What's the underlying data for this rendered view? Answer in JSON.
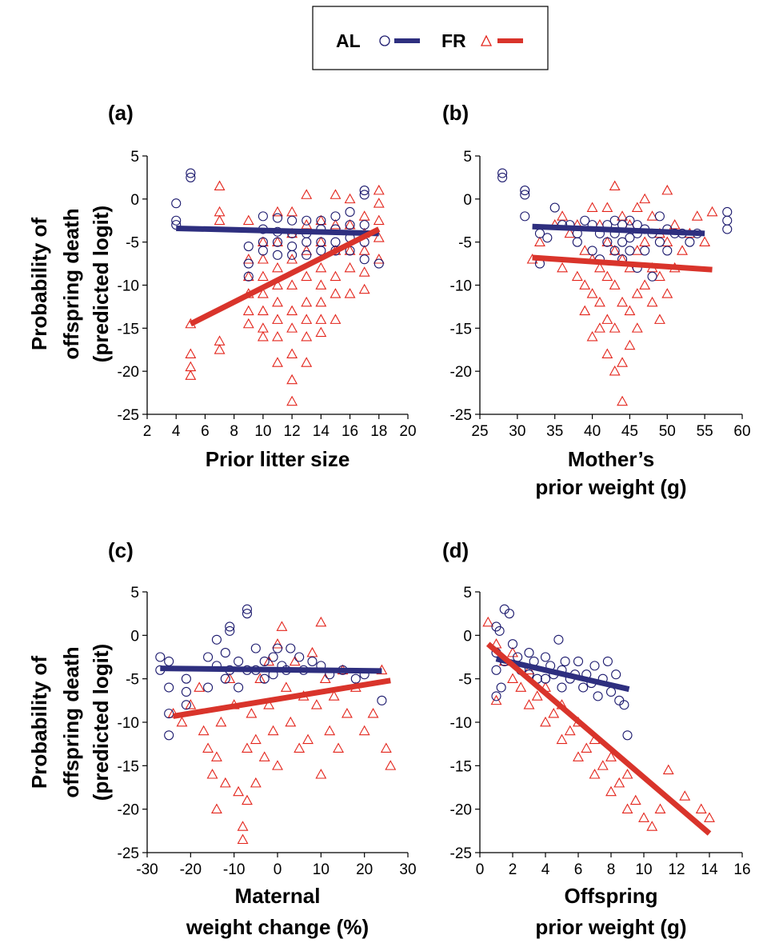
{
  "legend": {
    "entries": [
      {
        "name": "AL",
        "marker": "circle-icon",
        "color": "#1c1a6e"
      },
      {
        "name": "FR",
        "marker": "triangle-icon",
        "color": "#e3241b"
      }
    ]
  },
  "colors": {
    "AL": "#1c1a6e",
    "FR": "#e3241b",
    "AL_line": "#2e2f7f",
    "FR_line": "#d9342b"
  },
  "shared_ylabel": [
    "Probability of",
    "offspring death",
    "(predicted logit)"
  ],
  "chart_data": [
    {
      "id": "a",
      "panel_label": "(a)",
      "type": "scatter",
      "xlabel": [
        "Prior litter size"
      ],
      "ylabel": [
        "Probability of",
        "offspring death",
        "(predicted logit)"
      ],
      "xlim": [
        2,
        20
      ],
      "ylim": [
        -25,
        5
      ],
      "xticks": [
        2,
        4,
        6,
        8,
        10,
        12,
        14,
        16,
        18,
        20
      ],
      "yticks": [
        5,
        0,
        -5,
        -10,
        -15,
        -20,
        -25
      ],
      "series": [
        {
          "name": "AL",
          "marker": "circle",
          "color": "#1c1a6e",
          "x": [
            4,
            4,
            4,
            5,
            5,
            9,
            9,
            9,
            10,
            10,
            10,
            10,
            11,
            11,
            11,
            11,
            12,
            12,
            12,
            12,
            13,
            13,
            13,
            13,
            14,
            14,
            14,
            14,
            15,
            15,
            15,
            15,
            16,
            16,
            16,
            16,
            17,
            17,
            17,
            17,
            17,
            18
          ],
          "y": [
            -0.5,
            -2.5,
            -3,
            3,
            2.5,
            -5.5,
            -7.5,
            -9,
            -2,
            -3.5,
            -5,
            -6,
            -2.2,
            -3.8,
            -5,
            -6.5,
            -2.5,
            -4,
            -5.5,
            -6.5,
            -2.5,
            -4,
            -5,
            -6.5,
            -2.5,
            -3.5,
            -5,
            -6,
            -2,
            -3.5,
            -5,
            -6,
            -1.5,
            -3,
            -4.5,
            -6,
            1,
            0.5,
            -3,
            -5,
            -7,
            -7.5
          ],
          "fit": {
            "x": [
              4,
              18
            ],
            "y": [
              -3.4,
              -4.0
            ]
          }
        },
        {
          "name": "FR",
          "marker": "triangle",
          "color": "#e3241b",
          "x": [
            5,
            5,
            5,
            5,
            7,
            7,
            7,
            7,
            7,
            9,
            9,
            9,
            9,
            9,
            9,
            10,
            10,
            10,
            10,
            10,
            10,
            10,
            11,
            11,
            11,
            11,
            11,
            11,
            11,
            11,
            12,
            12,
            12,
            12,
            12,
            12,
            12,
            12,
            12,
            13,
            13,
            13,
            13,
            13,
            13,
            13,
            13,
            14,
            14,
            14,
            14,
            14,
            14,
            14,
            15,
            15,
            15,
            15,
            15,
            15,
            16,
            16,
            16,
            16,
            16,
            17,
            17,
            17,
            17,
            17,
            18,
            18,
            18,
            18,
            18
          ],
          "y": [
            -14.5,
            -18,
            -19.5,
            -20.5,
            1.5,
            -1.5,
            -2.5,
            -16.5,
            -17.5,
            -2.5,
            -7,
            -9,
            -11,
            -13,
            -14.5,
            -5,
            -7,
            -9,
            -11,
            -13,
            -15,
            -16,
            -1.5,
            -5,
            -8,
            -10,
            -12,
            -14,
            -16,
            -19,
            -1.5,
            -4,
            -7,
            -10,
            -13,
            -15,
            -18,
            -21,
            -23.5,
            0.5,
            -3,
            -6,
            -9,
            -12,
            -14,
            -16,
            -19,
            -2.5,
            -5,
            -8,
            -10,
            -12,
            -14,
            -15.5,
            0.5,
            -3,
            -6,
            -9,
            -11,
            -14,
            0,
            -3,
            -6,
            -8,
            -11,
            -2,
            -4,
            -6,
            -8.5,
            -10.5,
            1,
            -0.5,
            -2.5,
            -4.5,
            -7
          ],
          "fit": {
            "x": [
              5,
              18
            ],
            "y": [
              -14.5,
              -3.5
            ]
          }
        }
      ]
    },
    {
      "id": "b",
      "panel_label": "(b)",
      "type": "scatter",
      "xlabel": [
        "Mother’s",
        "prior weight (g)"
      ],
      "ylabel": [],
      "xlim": [
        25,
        60
      ],
      "ylim": [
        -25,
        5
      ],
      "xticks": [
        25,
        30,
        35,
        40,
        45,
        50,
        55,
        60
      ],
      "yticks": [
        5,
        0,
        -5,
        -10,
        -15,
        -20,
        -25
      ],
      "series": [
        {
          "name": "AL",
          "marker": "circle",
          "color": "#1c1a6e",
          "x": [
            28,
            28,
            31,
            31,
            31,
            33,
            33,
            34,
            35,
            36,
            37,
            38,
            38,
            39,
            40,
            40,
            41,
            41,
            42,
            42,
            43,
            43,
            43,
            44,
            44,
            44,
            45,
            45,
            45,
            46,
            46,
            46,
            47,
            47,
            48,
            48,
            49,
            49,
            50,
            50,
            51,
            52,
            53,
            54,
            58,
            58,
            58
          ],
          "y": [
            3,
            2.5,
            1,
            0.5,
            -2,
            -4,
            -7.5,
            -4.5,
            -1,
            -3,
            -3,
            -4,
            -5,
            -2.5,
            -3,
            -6,
            -4,
            -7,
            -3,
            -5,
            -2.5,
            -4,
            -6,
            -3,
            -5,
            -7,
            -2.5,
            -4.5,
            -6,
            -3,
            -4,
            -8,
            -3.5,
            -6,
            -4,
            -9,
            -2,
            -5,
            -3.5,
            -6,
            -4,
            -4,
            -5,
            -4,
            -1.5,
            -2.5,
            -3.5
          ],
          "fit": {
            "x": [
              32,
              55
            ],
            "y": [
              -3.2,
              -4.0
            ]
          }
        },
        {
          "name": "FR",
          "marker": "triangle",
          "color": "#e3241b",
          "x": [
            32,
            33,
            35,
            36,
            36,
            37,
            38,
            38,
            39,
            39,
            39,
            40,
            40,
            40,
            40,
            41,
            41,
            41,
            41,
            42,
            42,
            42,
            42,
            42,
            43,
            43,
            43,
            43,
            43,
            44,
            44,
            44,
            44,
            44,
            45,
            45,
            45,
            45,
            46,
            46,
            46,
            46,
            47,
            47,
            47,
            48,
            48,
            48,
            49,
            49,
            49,
            50,
            50,
            50,
            51,
            51,
            52,
            53,
            54,
            55,
            56
          ],
          "y": [
            -7,
            -5,
            -3,
            -2,
            -8,
            -4,
            -3,
            -9,
            -6,
            -10,
            -13,
            -1,
            -7,
            -11,
            -16,
            -3,
            -8,
            -12,
            -15,
            -1,
            -5,
            -9,
            -14,
            -18,
            1.5,
            -6,
            -10,
            -15,
            -20,
            -2,
            -7,
            -12,
            -19,
            -23.5,
            -3,
            -8,
            -13,
            -17,
            -1,
            -6,
            -11,
            -15,
            0,
            -5,
            -10,
            -2,
            -8,
            -12,
            -4,
            -9,
            -14,
            1,
            -5,
            -11,
            -3,
            -8,
            -6,
            -4,
            -2,
            -5,
            -1.5
          ],
          "fit": {
            "x": [
              32,
              56
            ],
            "y": [
              -6.8,
              -8.2
            ]
          }
        }
      ]
    },
    {
      "id": "c",
      "panel_label": "(c)",
      "type": "scatter",
      "xlabel": [
        "Maternal",
        "weight change (%)"
      ],
      "ylabel": [
        "Probability of",
        "offspring death",
        "(predicted logit)"
      ],
      "xlim": [
        -30,
        30
      ],
      "ylim": [
        -25,
        5
      ],
      "xticks": [
        -30,
        -20,
        -10,
        0,
        10,
        20,
        30
      ],
      "yticks": [
        5,
        0,
        -5,
        -10,
        -15,
        -20,
        -25
      ],
      "series": [
        {
          "name": "AL",
          "marker": "circle",
          "color": "#1c1a6e",
          "x": [
            -27,
            -27,
            -25,
            -25,
            -25,
            -25,
            -21,
            -21,
            -21,
            -16,
            -16,
            -14,
            -14,
            -12,
            -12,
            -11,
            -11,
            -11,
            -9,
            -9,
            -7,
            -7,
            -7,
            -5,
            -5,
            -3,
            -3,
            -1,
            -1,
            0,
            1,
            2,
            3,
            5,
            6,
            8,
            10,
            12,
            15,
            18,
            20,
            24
          ],
          "y": [
            -2.5,
            -4,
            -3,
            -6,
            -9,
            -11.5,
            -5,
            -6.5,
            -8,
            -2.5,
            -6,
            -0.5,
            -3.5,
            -2,
            -5,
            1,
            0.5,
            -4,
            -3,
            -6,
            3,
            2.5,
            -4,
            -1.5,
            -4,
            -3,
            -5,
            -2.5,
            -4.5,
            -1.5,
            -3.5,
            -4,
            -1.5,
            -2.5,
            -4,
            -3,
            -3.5,
            -4.5,
            -4,
            -5,
            -4.5,
            -7.5
          ],
          "fit": {
            "x": [
              -27,
              24
            ],
            "y": [
              -3.8,
              -4.1
            ]
          }
        },
        {
          "name": "FR",
          "marker": "triangle",
          "color": "#e3241b",
          "x": [
            -24,
            -22,
            -20,
            -18,
            -17,
            -16,
            -15,
            -14,
            -14,
            -13,
            -12,
            -11,
            -10,
            -9,
            -8,
            -8,
            -7,
            -7,
            -6,
            -5,
            -5,
            -4,
            -3,
            -2,
            -2,
            -1,
            0,
            0,
            1,
            2,
            3,
            4,
            5,
            6,
            7,
            8,
            9,
            10,
            10,
            11,
            12,
            13,
            14,
            15,
            16,
            18,
            20,
            22,
            24,
            25,
            26
          ],
          "y": [
            -9,
            -10,
            -8,
            -6,
            -11,
            -13,
            -16,
            -14,
            -20,
            -10,
            -17,
            -5,
            -8,
            -18,
            -22,
            -23.5,
            -13,
            -19,
            -9,
            -12,
            -17,
            -5,
            -14,
            -3,
            -8,
            -11,
            -1,
            -15,
            1,
            -6,
            -10,
            -3,
            -13,
            -7,
            -12,
            -2,
            -8,
            1.5,
            -16,
            -5,
            -11,
            -7,
            -13,
            -4,
            -9,
            -6,
            -11,
            -9,
            -4,
            -13,
            -15
          ],
          "fit": {
            "x": [
              -24,
              26
            ],
            "y": [
              -9.3,
              -5.2
            ]
          }
        }
      ]
    },
    {
      "id": "d",
      "panel_label": "(d)",
      "type": "scatter",
      "xlabel": [
        "Offspring",
        "prior weight (g)"
      ],
      "ylabel": [],
      "xlim": [
        0,
        16
      ],
      "ylim": [
        -25,
        5
      ],
      "xticks": [
        0,
        2,
        4,
        6,
        8,
        10,
        12,
        14,
        16
      ],
      "yticks": [
        5,
        0,
        -5,
        -10,
        -15,
        -20,
        -25
      ],
      "series": [
        {
          "name": "AL",
          "marker": "circle",
          "color": "#1c1a6e",
          "x": [
            1,
            1,
            1,
            1,
            1.2,
            1.3,
            1.5,
            1.5,
            1.8,
            2,
            2.3,
            2.5,
            3,
            3,
            3.3,
            3.5,
            4,
            4,
            4.3,
            4.5,
            4.8,
            5,
            5,
            5.2,
            5.5,
            5.8,
            6,
            6.3,
            6.5,
            6.8,
            7,
            7.2,
            7.5,
            7.8,
            8,
            8.3,
            8.5,
            8.8,
            9
          ],
          "y": [
            1,
            -2,
            -4,
            -7,
            0.5,
            -6,
            3,
            -3,
            2.5,
            -1,
            -2.5,
            -4,
            -2,
            -4.5,
            -3,
            -5,
            -2.5,
            -5,
            -3.5,
            -4.5,
            -0.5,
            -4,
            -6,
            -3,
            -5,
            -4.5,
            -3,
            -6,
            -4.5,
            -5.5,
            -3.5,
            -7,
            -5,
            -3,
            -6.5,
            -4.5,
            -7.5,
            -8,
            -11.5
          ],
          "fit": {
            "x": [
              1,
              9.1
            ],
            "y": [
              -2.7,
              -6.2
            ]
          }
        },
        {
          "name": "FR",
          "marker": "triangle",
          "color": "#e3241b",
          "x": [
            0.5,
            1,
            1,
            1.5,
            2,
            2,
            2.5,
            3,
            3,
            3.5,
            4,
            4,
            4.5,
            5,
            5,
            5.5,
            6,
            6,
            6.5,
            7,
            7,
            7.5,
            8,
            8,
            8.5,
            9,
            9,
            9.5,
            10,
            10.5,
            11,
            11.5,
            12.5,
            13.5,
            14
          ],
          "y": [
            1.5,
            -1,
            -7.5,
            -3,
            -2,
            -5,
            -6,
            -4,
            -8,
            -7,
            -6,
            -10,
            -9,
            -8,
            -12,
            -11,
            -10,
            -14,
            -13,
            -12,
            -16,
            -15,
            -14,
            -18,
            -17,
            -16,
            -20,
            -19,
            -21,
            -22,
            -20,
            -15.5,
            -18.5,
            -20,
            -21
          ],
          "fit": {
            "x": [
              0.5,
              14
            ],
            "y": [
              -1.0,
              -22.8
            ]
          }
        }
      ]
    }
  ]
}
